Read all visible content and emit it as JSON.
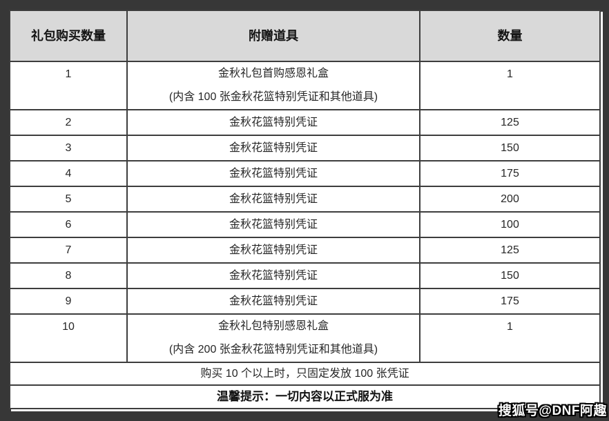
{
  "colors": {
    "page_background": "#373737",
    "header_background": "#d9d9d9",
    "table_background": "#ffffff",
    "grid_line": "#3d3d3d"
  },
  "table": {
    "header": {
      "purchase_count": "礼包购买数量",
      "item": "附赠道具",
      "amount": "数量"
    },
    "rows": [
      {
        "purchase_count": "1",
        "item": "金秋礼包首购感恩礼盒",
        "item_note": "(内含 100 张金秋花篮特别凭证和其他道具)",
        "amount": "1"
      },
      {
        "purchase_count": "2",
        "item": "金秋花篮特别凭证",
        "amount": "125"
      },
      {
        "purchase_count": "3",
        "item": "金秋花篮特别凭证",
        "amount": "150"
      },
      {
        "purchase_count": "4",
        "item": "金秋花篮特别凭证",
        "amount": "175"
      },
      {
        "purchase_count": "5",
        "item": "金秋花篮特别凭证",
        "amount": "200"
      },
      {
        "purchase_count": "6",
        "item": "金秋花篮特别凭证",
        "amount": "100"
      },
      {
        "purchase_count": "7",
        "item": "金秋花篮特别凭证",
        "amount": "125"
      },
      {
        "purchase_count": "8",
        "item": "金秋花篮特别凭证",
        "amount": "150"
      },
      {
        "purchase_count": "9",
        "item": "金秋花篮特别凭证",
        "amount": "175"
      },
      {
        "purchase_count": "10",
        "item": "金秋礼包特别感恩礼盒",
        "item_note": "(内含 200 张金秋花篮特别凭证和其他道具)",
        "amount": "1"
      }
    ],
    "footnote": "购买 10 个以上时，只固定发放 100 张凭证",
    "tip": "温馨提示：一切内容以正式服为准"
  },
  "watermark": "搜狐号@DNF阿趣"
}
